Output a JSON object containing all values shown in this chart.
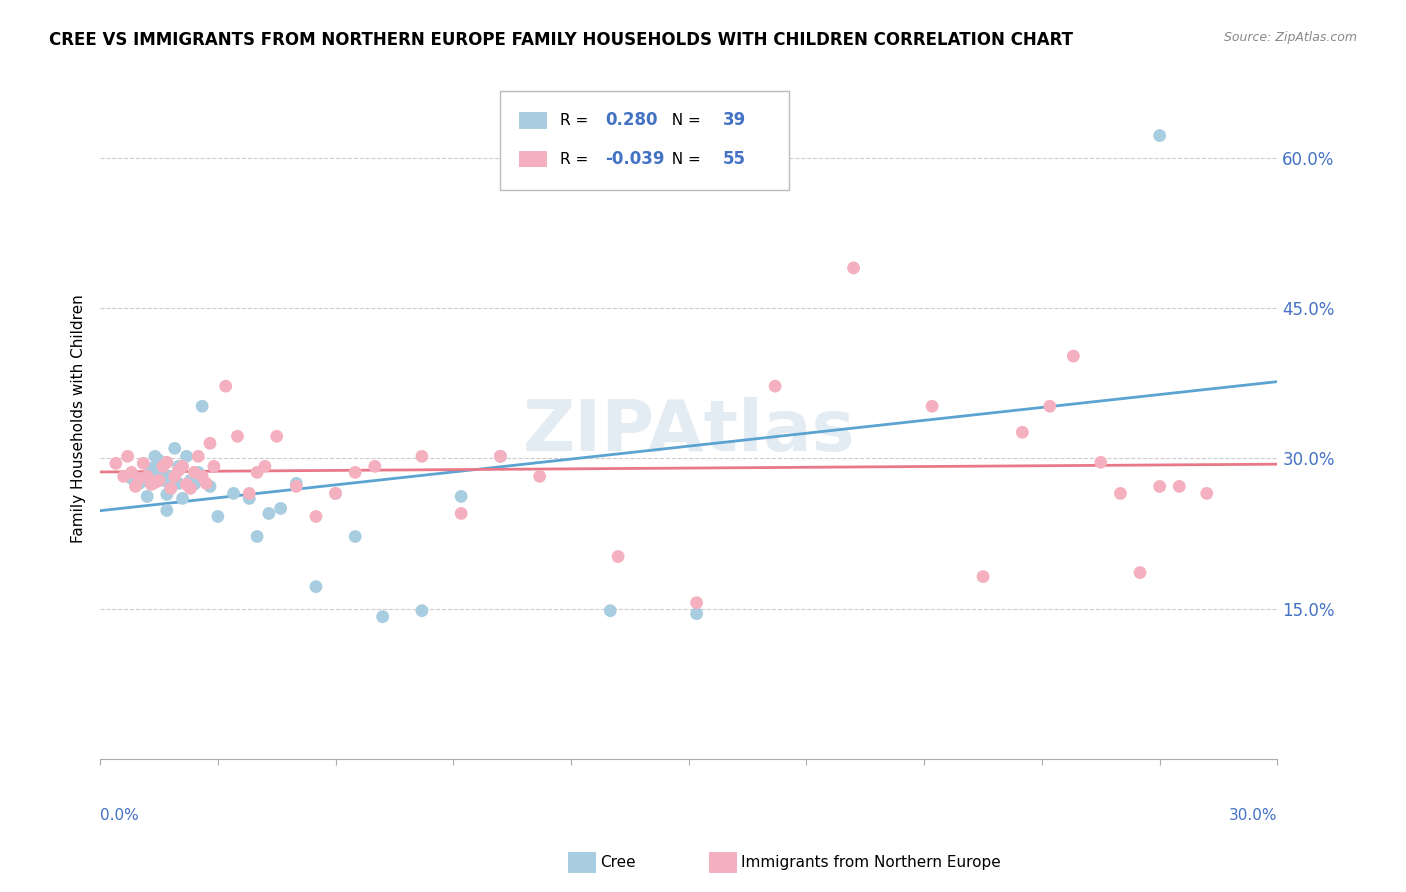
{
  "title": "CREE VS IMMIGRANTS FROM NORTHERN EUROPE FAMILY HOUSEHOLDS WITH CHILDREN CORRELATION CHART",
  "source": "Source: ZipAtlas.com",
  "ylabel": "Family Households with Children",
  "right_yticks": [
    "60.0%",
    "45.0%",
    "30.0%",
    "15.0%"
  ],
  "right_ytick_vals": [
    0.6,
    0.45,
    0.3,
    0.15
  ],
  "xmin": 0.0,
  "xmax": 0.3,
  "ymin": 0.0,
  "ymax": 0.68,
  "cree_R": 0.28,
  "cree_N": 39,
  "imm_R": -0.039,
  "imm_N": 55,
  "cree_color": "#a8cce0",
  "imm_color": "#f4b0be",
  "cree_line_color": "#5ba3d0",
  "imm_line_color": "#e87888",
  "legend_label_cree": "Cree",
  "legend_label_imm": "Immigrants from Northern Europe",
  "watermark": "ZIPAtlas",
  "accent_color": "#4472c4",
  "cree_x": [
    0.008,
    0.01,
    0.012,
    0.013,
    0.014,
    0.015,
    0.015,
    0.016,
    0.017,
    0.017,
    0.018,
    0.018,
    0.019,
    0.02,
    0.02,
    0.021,
    0.022,
    0.023,
    0.024,
    0.025,
    0.026,
    0.028,
    0.03,
    0.034,
    0.038,
    0.04,
    0.043,
    0.046,
    0.05,
    0.055,
    0.06,
    0.065,
    0.072,
    0.082,
    0.092,
    0.102,
    0.13,
    0.152,
    0.27
  ],
  "cree_y": [
    0.28,
    0.275,
    0.262,
    0.29,
    0.302,
    0.282,
    0.298,
    0.278,
    0.264,
    0.248,
    0.27,
    0.282,
    0.31,
    0.292,
    0.275,
    0.26,
    0.302,
    0.278,
    0.274,
    0.286,
    0.352,
    0.272,
    0.242,
    0.265,
    0.26,
    0.222,
    0.245,
    0.25,
    0.275,
    0.172,
    0.265,
    0.222,
    0.142,
    0.148,
    0.262,
    0.302,
    0.148,
    0.145,
    0.622
  ],
  "imm_x": [
    0.004,
    0.006,
    0.007,
    0.008,
    0.009,
    0.01,
    0.011,
    0.012,
    0.013,
    0.014,
    0.015,
    0.016,
    0.017,
    0.018,
    0.019,
    0.02,
    0.021,
    0.022,
    0.023,
    0.024,
    0.025,
    0.026,
    0.027,
    0.028,
    0.029,
    0.032,
    0.035,
    0.038,
    0.04,
    0.042,
    0.045,
    0.05,
    0.055,
    0.06,
    0.065,
    0.07,
    0.082,
    0.092,
    0.102,
    0.112,
    0.132,
    0.152,
    0.172,
    0.192,
    0.212,
    0.225,
    0.235,
    0.242,
    0.248,
    0.255,
    0.26,
    0.265,
    0.27,
    0.275,
    0.282
  ],
  "imm_y": [
    0.295,
    0.282,
    0.302,
    0.286,
    0.272,
    0.28,
    0.295,
    0.282,
    0.274,
    0.276,
    0.278,
    0.292,
    0.296,
    0.27,
    0.282,
    0.288,
    0.292,
    0.274,
    0.27,
    0.286,
    0.302,
    0.282,
    0.275,
    0.315,
    0.292,
    0.372,
    0.322,
    0.265,
    0.286,
    0.292,
    0.322,
    0.272,
    0.242,
    0.265,
    0.286,
    0.292,
    0.302,
    0.245,
    0.302,
    0.282,
    0.202,
    0.156,
    0.372,
    0.49,
    0.352,
    0.182,
    0.326,
    0.352,
    0.402,
    0.296,
    0.265,
    0.186,
    0.272,
    0.272,
    0.265
  ]
}
